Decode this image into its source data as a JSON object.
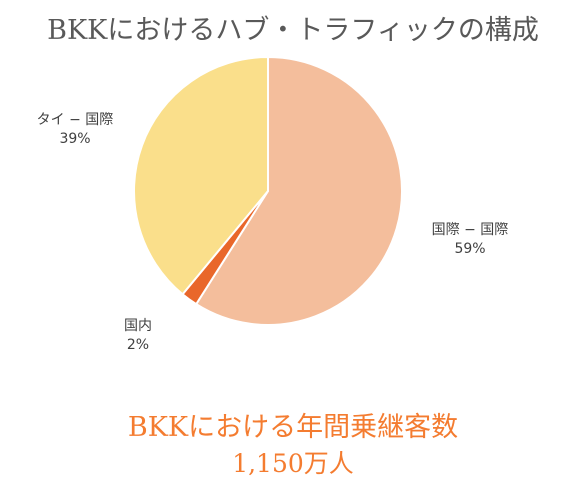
{
  "chart_data": {
    "type": "pie",
    "title": "BKKにおけるハブ・トラフィックの構成",
    "slices": [
      {
        "name": "国際 − 国際",
        "value": 59,
        "pct_label": "59%",
        "color": "#f4be9c"
      },
      {
        "name": "国内",
        "value": 2,
        "pct_label": "2%",
        "color": "#e9672a"
      },
      {
        "name": "タイ − 国際",
        "value": 39,
        "pct_label": "39%",
        "color": "#fadf8b"
      }
    ],
    "legend": "none"
  },
  "footer": {
    "caption": "BKKにおける年間乗継客数",
    "value": "1,150万人",
    "color": "#f47c30"
  }
}
